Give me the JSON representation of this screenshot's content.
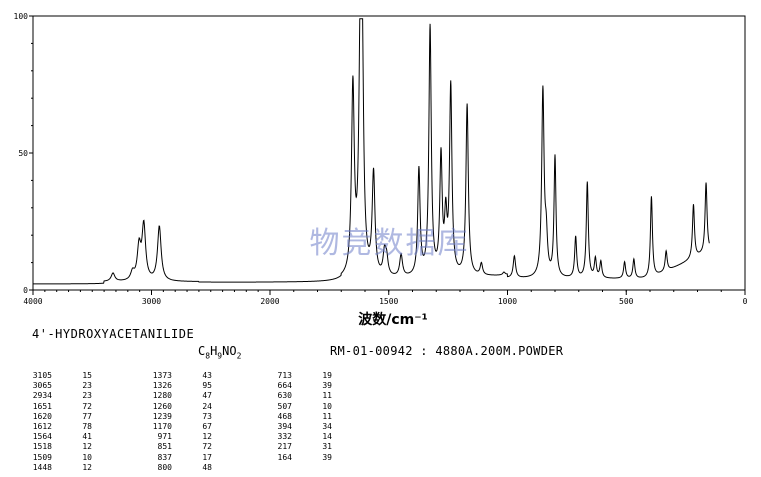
{
  "chart_data": {
    "type": "line",
    "xlim": [
      4000,
      0
    ],
    "ylim": [
      0,
      100
    ],
    "x_ticks": [
      "4000",
      "3000",
      "2000",
      "1500",
      "1000",
      "500",
      "0"
    ],
    "y_ticks": [
      "0",
      "50",
      "100"
    ],
    "xlabel": "波数/cm⁻¹",
    "grid": false,
    "series": [
      {
        "peaks": [
          {
            "x": 3325,
            "y": 6
          },
          {
            "x": 3160,
            "y": 6
          },
          {
            "x": 3105,
            "y": 15
          },
          {
            "x": 3065,
            "y": 23
          },
          {
            "x": 2934,
            "y": 23
          },
          {
            "x": 1651,
            "y": 72
          },
          {
            "x": 1620,
            "y": 77
          },
          {
            "x": 1612,
            "y": 78
          },
          {
            "x": 1564,
            "y": 41
          },
          {
            "x": 1518,
            "y": 12
          },
          {
            "x": 1509,
            "y": 10
          },
          {
            "x": 1448,
            "y": 12
          },
          {
            "x": 1373,
            "y": 43
          },
          {
            "x": 1326,
            "y": 95
          },
          {
            "x": 1280,
            "y": 47
          },
          {
            "x": 1260,
            "y": 24
          },
          {
            "x": 1239,
            "y": 73
          },
          {
            "x": 1170,
            "y": 67
          },
          {
            "x": 1110,
            "y": 9
          },
          {
            "x": 1015,
            "y": 6
          },
          {
            "x": 971,
            "y": 12
          },
          {
            "x": 851,
            "y": 72
          },
          {
            "x": 837,
            "y": 17
          },
          {
            "x": 800,
            "y": 48
          },
          {
            "x": 713,
            "y": 19
          },
          {
            "x": 664,
            "y": 39
          },
          {
            "x": 630,
            "y": 11
          },
          {
            "x": 607,
            "y": 10
          },
          {
            "x": 507,
            "y": 10
          },
          {
            "x": 468,
            "y": 11
          },
          {
            "x": 394,
            "y": 34
          },
          {
            "x": 332,
            "y": 14
          },
          {
            "x": 217,
            "y": 31
          },
          {
            "x": 164,
            "y": 39
          }
        ]
      }
    ]
  },
  "title": "4'-HYDROXYACETANILIDE",
  "formula": {
    "c": "C",
    "c_n": "8",
    "h": "H",
    "h_n": "9",
    "rest": "NO",
    "o_n": "2"
  },
  "reference": "RM-01-00942 : 4880A.200M.POWDER",
  "watermark": "物竞数据库",
  "peak_table": [
    [
      [
        "3105",
        "15"
      ],
      [
        "3065",
        "23"
      ],
      [
        "2934",
        "23"
      ],
      [
        "1651",
        "72"
      ],
      [
        "1620",
        "77"
      ],
      [
        "1612",
        "78"
      ],
      [
        "1564",
        "41"
      ],
      [
        "1518",
        "12"
      ],
      [
        "1509",
        "10"
      ],
      [
        "1448",
        "12"
      ]
    ],
    [
      [
        "1373",
        "43"
      ],
      [
        "1326",
        "95"
      ],
      [
        "1280",
        "47"
      ],
      [
        "1260",
        "24"
      ],
      [
        "1239",
        "73"
      ],
      [
        "1170",
        "67"
      ],
      [
        "971",
        "12"
      ],
      [
        "851",
        "72"
      ],
      [
        "837",
        "17"
      ],
      [
        "800",
        "48"
      ]
    ],
    [
      [
        "713",
        "19"
      ],
      [
        "664",
        "39"
      ],
      [
        "630",
        "11"
      ],
      [
        "507",
        "10"
      ],
      [
        "468",
        "11"
      ],
      [
        "394",
        "34"
      ],
      [
        "332",
        "14"
      ],
      [
        "217",
        "31"
      ],
      [
        "164",
        "39"
      ]
    ]
  ]
}
